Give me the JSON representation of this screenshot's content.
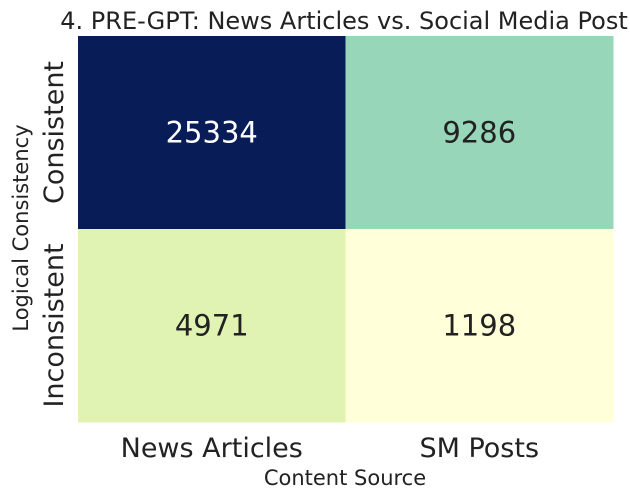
{
  "chart_data": {
    "type": "heatmap",
    "title": "4. PRE-GPT: News Articles vs. Social Media Post",
    "xlabel": "Content Source",
    "ylabel": "Logical Consistency",
    "x_categories": [
      "News Articles",
      "SM Posts"
    ],
    "y_categories": [
      "Consistent",
      "Inconsistent"
    ],
    "values": [
      [
        25334,
        9286
      ],
      [
        4971,
        1198
      ]
    ],
    "colormap": "YlGnBu",
    "colorbar": false,
    "cell_colors": [
      [
        "#081d58",
        "#97d6b9"
      ],
      [
        "#e1f3b2",
        "#ffffd9"
      ]
    ],
    "cell_text_colors": [
      [
        "#ffffff",
        "#222222"
      ],
      [
        "#222222",
        "#222222"
      ]
    ]
  }
}
